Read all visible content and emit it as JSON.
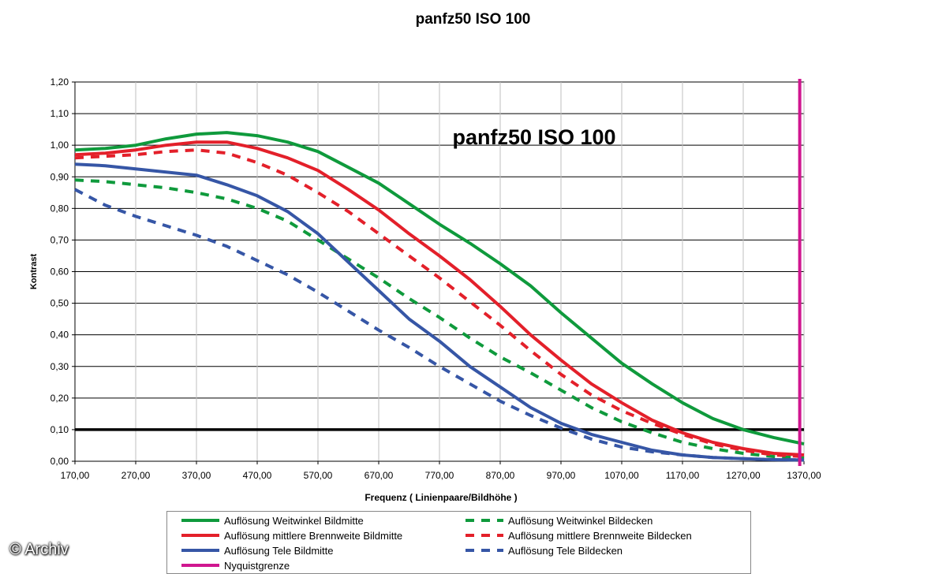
{
  "page": {
    "title": "panfz50 ISO 100",
    "credit": "© Archiv"
  },
  "chart_data": {
    "type": "line",
    "title": "panfz50 ISO 100",
    "inner_title": "panfz50 ISO 100",
    "xlabel": "Frequenz ( Linienpaare/Bildhöhe )",
    "ylabel": "Kontrast",
    "xlim": [
      170,
      1370
    ],
    "ylim": [
      0,
      1.2
    ],
    "x_ticks": [
      "170,00",
      "270,00",
      "370,00",
      "470,00",
      "570,00",
      "670,00",
      "770,00",
      "870,00",
      "970,00",
      "1070,00",
      "1170,00",
      "1270,00",
      "1370,00"
    ],
    "y_ticks": [
      "0,00",
      "0,10",
      "0,20",
      "0,30",
      "0,40",
      "0,50",
      "0,60",
      "0,70",
      "0,80",
      "0,90",
      "1,00",
      "1,10",
      "1,20"
    ],
    "grid": true,
    "reference_line": {
      "y": 0.1,
      "color": "#000000"
    },
    "nyquist": {
      "x": 1363,
      "color": "#d0168f",
      "name": "Nyquistgrenze"
    },
    "series": [
      {
        "name": "Auflösung Weitwinkel Bildmitte",
        "color": "#0f9a3c",
        "dashed": false,
        "x": [
          170,
          220,
          270,
          320,
          370,
          420,
          470,
          520,
          570,
          620,
          670,
          720,
          770,
          820,
          870,
          920,
          970,
          1020,
          1070,
          1120,
          1170,
          1220,
          1270,
          1320,
          1370
        ],
        "y": [
          0.985,
          0.99,
          1.0,
          1.02,
          1.035,
          1.04,
          1.03,
          1.01,
          0.98,
          0.93,
          0.88,
          0.815,
          0.75,
          0.69,
          0.625,
          0.555,
          0.47,
          0.39,
          0.31,
          0.245,
          0.185,
          0.135,
          0.1,
          0.075,
          0.055
        ]
      },
      {
        "name": "Auflösung Weitwinkel Bildecken",
        "color": "#0f9a3c",
        "dashed": true,
        "x": [
          170,
          220,
          270,
          320,
          370,
          420,
          470,
          520,
          570,
          620,
          670,
          720,
          770,
          820,
          870,
          920,
          970,
          1020,
          1070,
          1120,
          1170,
          1220,
          1270,
          1320,
          1370
        ],
        "y": [
          0.89,
          0.885,
          0.875,
          0.865,
          0.85,
          0.83,
          0.8,
          0.76,
          0.7,
          0.64,
          0.58,
          0.515,
          0.455,
          0.39,
          0.33,
          0.28,
          0.225,
          0.17,
          0.125,
          0.09,
          0.06,
          0.04,
          0.025,
          0.015,
          0.01
        ]
      },
      {
        "name": "Auflösung mittlere Brennweite Bildmitte",
        "color": "#e3202a",
        "dashed": false,
        "x": [
          170,
          220,
          270,
          320,
          370,
          420,
          470,
          520,
          570,
          620,
          670,
          720,
          770,
          820,
          870,
          920,
          970,
          1020,
          1070,
          1120,
          1170,
          1220,
          1270,
          1320,
          1370
        ],
        "y": [
          0.97,
          0.975,
          0.985,
          1.0,
          1.01,
          1.01,
          0.99,
          0.96,
          0.92,
          0.86,
          0.795,
          0.72,
          0.65,
          0.575,
          0.49,
          0.4,
          0.32,
          0.245,
          0.185,
          0.13,
          0.09,
          0.06,
          0.04,
          0.025,
          0.02
        ]
      },
      {
        "name": "Auflösung mittlere Brennweite Bildecken",
        "color": "#e3202a",
        "dashed": true,
        "x": [
          170,
          220,
          270,
          320,
          370,
          420,
          470,
          520,
          570,
          620,
          670,
          720,
          770,
          820,
          870,
          920,
          970,
          1020,
          1070,
          1120,
          1170,
          1220,
          1270,
          1320,
          1370
        ],
        "y": [
          0.96,
          0.965,
          0.97,
          0.98,
          0.985,
          0.975,
          0.945,
          0.905,
          0.85,
          0.79,
          0.72,
          0.65,
          0.58,
          0.505,
          0.43,
          0.35,
          0.275,
          0.21,
          0.16,
          0.12,
          0.085,
          0.055,
          0.035,
          0.02,
          0.015
        ]
      },
      {
        "name": "Auflösung Tele Bildmitte",
        "color": "#3656a6",
        "dashed": false,
        "x": [
          170,
          220,
          270,
          320,
          370,
          420,
          470,
          520,
          570,
          620,
          670,
          720,
          770,
          820,
          870,
          920,
          970,
          1020,
          1070,
          1120,
          1170,
          1220,
          1270,
          1320,
          1370
        ],
        "y": [
          0.94,
          0.935,
          0.925,
          0.915,
          0.905,
          0.875,
          0.84,
          0.79,
          0.72,
          0.63,
          0.54,
          0.45,
          0.38,
          0.3,
          0.235,
          0.17,
          0.12,
          0.085,
          0.06,
          0.035,
          0.02,
          0.012,
          0.008,
          0.005,
          0.004
        ]
      },
      {
        "name": "Auflösung Tele Bildecken",
        "color": "#3656a6",
        "dashed": true,
        "x": [
          170,
          220,
          270,
          320,
          370,
          420,
          470,
          520,
          570,
          620,
          670,
          720,
          770,
          820,
          870,
          920,
          970,
          1020,
          1070,
          1120,
          1170,
          1220,
          1270,
          1320,
          1370
        ],
        "y": [
          0.86,
          0.81,
          0.775,
          0.745,
          0.715,
          0.68,
          0.635,
          0.59,
          0.535,
          0.475,
          0.415,
          0.36,
          0.3,
          0.245,
          0.19,
          0.145,
          0.105,
          0.07,
          0.045,
          0.03,
          0.02,
          0.012,
          0.008,
          0.005,
          0.004
        ]
      }
    ],
    "legend": [
      {
        "label": "Auflösung Weitwinkel Bildmitte",
        "color": "#0f9a3c",
        "dashed": false
      },
      {
        "label": "Auflösung Weitwinkel Bildecken",
        "color": "#0f9a3c",
        "dashed": true
      },
      {
        "label": "Auflösung mittlere Brennweite Bildmitte",
        "color": "#e3202a",
        "dashed": false
      },
      {
        "label": "Auflösung mittlere Brennweite Bildecken",
        "color": "#e3202a",
        "dashed": true
      },
      {
        "label": "Auflösung Tele Bildmitte",
        "color": "#3656a6",
        "dashed": false
      },
      {
        "label": "Auflösung Tele Bildecken",
        "color": "#3656a6",
        "dashed": true
      },
      {
        "label": "Nyquistgrenze",
        "color": "#d0168f",
        "dashed": false
      }
    ],
    "legend_position": "bottom"
  }
}
